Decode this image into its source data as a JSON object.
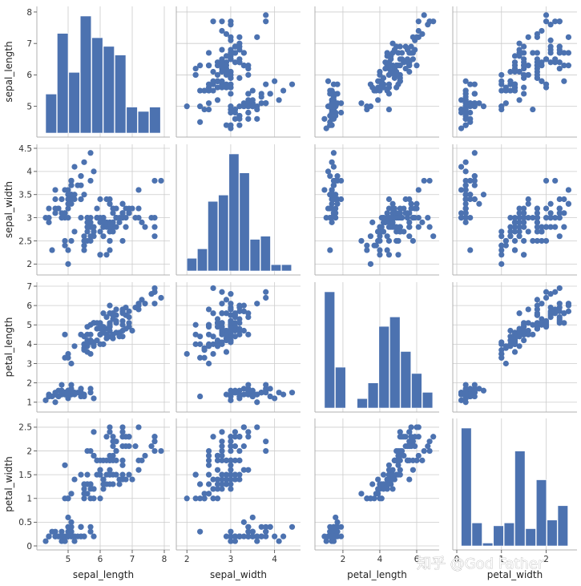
{
  "chart_data": {
    "type": "scatter",
    "title": "",
    "variables": [
      "sepal_length",
      "sepal_width",
      "petal_length",
      "petal_width"
    ],
    "axes": {
      "sepal_length": {
        "lim": [
          4.15,
          8.05
        ],
        "ticks": [
          5,
          6,
          7,
          8
        ]
      },
      "sepal_width": {
        "lim": [
          1.85,
          4.5
        ],
        "ticks": [
          2.0,
          2.5,
          3.0,
          3.5,
          4.0,
          4.5
        ],
        "x_ticks": [
          2,
          3,
          4
        ]
      },
      "petal_length": {
        "lim": [
          0.7,
          7.0
        ],
        "ticks": [
          1,
          2,
          3,
          4,
          5,
          6,
          7
        ],
        "x_ticks": [
          2,
          4,
          6
        ]
      },
      "petal_width": {
        "lim": [
          0.0,
          2.6
        ],
        "ticks": [
          0.0,
          0.5,
          1.0,
          1.5,
          2.0,
          2.5
        ],
        "x_ticks": [
          0,
          1,
          2
        ]
      }
    },
    "hist_bins": 10,
    "marker_color": "#4c72b0",
    "grid": true,
    "points": [
      [
        5.1,
        3.5,
        1.4,
        0.2
      ],
      [
        4.9,
        3.0,
        1.4,
        0.2
      ],
      [
        4.7,
        3.2,
        1.3,
        0.2
      ],
      [
        4.6,
        3.1,
        1.5,
        0.2
      ],
      [
        5.0,
        3.6,
        1.4,
        0.2
      ],
      [
        5.4,
        3.9,
        1.7,
        0.4
      ],
      [
        4.6,
        3.4,
        1.4,
        0.3
      ],
      [
        5.0,
        3.4,
        1.5,
        0.2
      ],
      [
        4.4,
        2.9,
        1.4,
        0.2
      ],
      [
        4.9,
        3.1,
        1.5,
        0.1
      ],
      [
        5.4,
        3.7,
        1.5,
        0.2
      ],
      [
        4.8,
        3.4,
        1.6,
        0.2
      ],
      [
        4.8,
        3.0,
        1.4,
        0.1
      ],
      [
        4.3,
        3.0,
        1.1,
        0.1
      ],
      [
        5.8,
        4.0,
        1.2,
        0.2
      ],
      [
        5.7,
        4.4,
        1.5,
        0.4
      ],
      [
        5.4,
        3.9,
        1.3,
        0.4
      ],
      [
        5.1,
        3.5,
        1.4,
        0.3
      ],
      [
        5.7,
        3.8,
        1.7,
        0.3
      ],
      [
        5.1,
        3.8,
        1.5,
        0.3
      ],
      [
        5.4,
        3.4,
        1.7,
        0.2
      ],
      [
        5.1,
        3.7,
        1.5,
        0.4
      ],
      [
        4.6,
        3.6,
        1.0,
        0.2
      ],
      [
        5.1,
        3.3,
        1.7,
        0.5
      ],
      [
        4.8,
        3.4,
        1.9,
        0.2
      ],
      [
        5.0,
        3.0,
        1.6,
        0.2
      ],
      [
        5.0,
        3.4,
        1.6,
        0.4
      ],
      [
        5.2,
        3.5,
        1.5,
        0.2
      ],
      [
        5.2,
        3.4,
        1.4,
        0.2
      ],
      [
        4.7,
        3.2,
        1.6,
        0.2
      ],
      [
        4.8,
        3.1,
        1.6,
        0.2
      ],
      [
        5.4,
        3.4,
        1.5,
        0.4
      ],
      [
        5.2,
        4.1,
        1.5,
        0.1
      ],
      [
        5.5,
        4.2,
        1.4,
        0.2
      ],
      [
        4.9,
        3.1,
        1.5,
        0.2
      ],
      [
        5.0,
        3.2,
        1.2,
        0.2
      ],
      [
        5.5,
        3.5,
        1.3,
        0.2
      ],
      [
        4.9,
        3.6,
        1.4,
        0.1
      ],
      [
        4.4,
        3.0,
        1.3,
        0.2
      ],
      [
        5.1,
        3.4,
        1.5,
        0.2
      ],
      [
        5.0,
        3.5,
        1.3,
        0.3
      ],
      [
        4.5,
        2.3,
        1.3,
        0.3
      ],
      [
        4.4,
        3.2,
        1.3,
        0.2
      ],
      [
        5.0,
        3.5,
        1.6,
        0.6
      ],
      [
        5.1,
        3.8,
        1.9,
        0.4
      ],
      [
        4.8,
        3.0,
        1.4,
        0.3
      ],
      [
        5.1,
        3.8,
        1.6,
        0.2
      ],
      [
        4.6,
        3.2,
        1.4,
        0.2
      ],
      [
        5.3,
        3.7,
        1.5,
        0.2
      ],
      [
        5.0,
        3.3,
        1.4,
        0.2
      ],
      [
        7.0,
        3.2,
        4.7,
        1.4
      ],
      [
        6.4,
        3.2,
        4.5,
        1.5
      ],
      [
        6.9,
        3.1,
        4.9,
        1.5
      ],
      [
        5.5,
        2.3,
        4.0,
        1.3
      ],
      [
        6.5,
        2.8,
        4.6,
        1.5
      ],
      [
        5.7,
        2.8,
        4.5,
        1.3
      ],
      [
        6.3,
        3.3,
        4.7,
        1.6
      ],
      [
        4.9,
        2.4,
        3.3,
        1.0
      ],
      [
        6.6,
        2.9,
        4.6,
        1.3
      ],
      [
        5.2,
        2.7,
        3.9,
        1.4
      ],
      [
        5.0,
        2.0,
        3.5,
        1.0
      ],
      [
        5.9,
        3.0,
        4.2,
        1.5
      ],
      [
        6.0,
        2.2,
        4.0,
        1.0
      ],
      [
        6.1,
        2.9,
        4.7,
        1.4
      ],
      [
        5.6,
        2.9,
        3.6,
        1.3
      ],
      [
        6.7,
        3.1,
        4.4,
        1.4
      ],
      [
        5.6,
        3.0,
        4.5,
        1.5
      ],
      [
        5.8,
        2.7,
        4.1,
        1.0
      ],
      [
        6.2,
        2.2,
        4.5,
        1.5
      ],
      [
        5.6,
        2.5,
        3.9,
        1.1
      ],
      [
        5.9,
        3.2,
        4.8,
        1.8
      ],
      [
        6.1,
        2.8,
        4.0,
        1.3
      ],
      [
        6.3,
        2.5,
        4.9,
        1.5
      ],
      [
        6.1,
        2.8,
        4.7,
        1.2
      ],
      [
        6.4,
        2.9,
        4.3,
        1.3
      ],
      [
        6.6,
        3.0,
        4.4,
        1.4
      ],
      [
        6.8,
        2.8,
        4.8,
        1.4
      ],
      [
        6.7,
        3.0,
        5.0,
        1.7
      ],
      [
        6.0,
        2.9,
        4.5,
        1.5
      ],
      [
        5.7,
        2.6,
        3.5,
        1.0
      ],
      [
        5.5,
        2.4,
        3.8,
        1.1
      ],
      [
        5.5,
        2.4,
        3.7,
        1.0
      ],
      [
        5.8,
        2.7,
        3.9,
        1.2
      ],
      [
        6.0,
        2.7,
        5.1,
        1.6
      ],
      [
        5.4,
        3.0,
        4.5,
        1.5
      ],
      [
        6.0,
        3.4,
        4.5,
        1.6
      ],
      [
        6.7,
        3.1,
        4.7,
        1.5
      ],
      [
        6.3,
        2.3,
        4.4,
        1.3
      ],
      [
        5.6,
        3.0,
        4.1,
        1.3
      ],
      [
        5.5,
        2.5,
        4.0,
        1.3
      ],
      [
        5.5,
        2.6,
        4.4,
        1.2
      ],
      [
        6.1,
        3.0,
        4.6,
        1.4
      ],
      [
        5.8,
        2.6,
        4.0,
        1.2
      ],
      [
        5.0,
        2.3,
        3.3,
        1.0
      ],
      [
        5.6,
        2.7,
        4.2,
        1.3
      ],
      [
        5.7,
        3.0,
        4.2,
        1.2
      ],
      [
        5.7,
        2.9,
        4.2,
        1.3
      ],
      [
        6.2,
        2.9,
        4.3,
        1.3
      ],
      [
        5.1,
        2.5,
        3.0,
        1.1
      ],
      [
        5.7,
        2.8,
        4.1,
        1.3
      ],
      [
        6.3,
        3.3,
        6.0,
        2.5
      ],
      [
        5.8,
        2.7,
        5.1,
        1.9
      ],
      [
        7.1,
        3.0,
        5.9,
        2.1
      ],
      [
        6.3,
        2.9,
        5.6,
        1.8
      ],
      [
        6.5,
        3.0,
        5.8,
        2.2
      ],
      [
        7.6,
        3.0,
        6.6,
        2.1
      ],
      [
        4.9,
        2.5,
        4.5,
        1.7
      ],
      [
        7.3,
        2.9,
        6.3,
        1.8
      ],
      [
        6.7,
        2.5,
        5.8,
        1.8
      ],
      [
        7.2,
        3.6,
        6.1,
        2.5
      ],
      [
        6.5,
        3.2,
        5.1,
        2.0
      ],
      [
        6.4,
        2.7,
        5.3,
        1.9
      ],
      [
        6.8,
        3.0,
        5.5,
        2.1
      ],
      [
        5.7,
        2.5,
        5.0,
        2.0
      ],
      [
        5.8,
        2.8,
        5.1,
        2.4
      ],
      [
        6.4,
        3.2,
        5.3,
        2.3
      ],
      [
        6.5,
        3.0,
        5.5,
        1.8
      ],
      [
        7.7,
        3.8,
        6.7,
        2.2
      ],
      [
        7.7,
        2.6,
        6.9,
        2.3
      ],
      [
        6.0,
        2.2,
        5.0,
        1.5
      ],
      [
        6.9,
        3.2,
        5.7,
        2.3
      ],
      [
        5.6,
        2.8,
        4.9,
        2.0
      ],
      [
        7.7,
        2.8,
        6.7,
        2.0
      ],
      [
        6.3,
        2.7,
        4.9,
        1.8
      ],
      [
        6.7,
        3.3,
        5.7,
        2.1
      ],
      [
        7.2,
        3.2,
        6.0,
        1.8
      ],
      [
        6.2,
        2.8,
        4.8,
        1.8
      ],
      [
        6.1,
        3.0,
        4.9,
        1.8
      ],
      [
        6.4,
        2.8,
        5.6,
        2.1
      ],
      [
        7.2,
        3.0,
        5.8,
        1.6
      ],
      [
        7.4,
        2.8,
        6.1,
        1.9
      ],
      [
        7.9,
        3.8,
        6.4,
        2.0
      ],
      [
        6.4,
        2.8,
        5.6,
        2.2
      ],
      [
        6.3,
        2.8,
        5.1,
        1.5
      ],
      [
        6.1,
        2.6,
        5.6,
        1.4
      ],
      [
        7.7,
        3.0,
        6.1,
        2.3
      ],
      [
        6.3,
        3.4,
        5.6,
        2.4
      ],
      [
        6.4,
        3.1,
        5.5,
        1.8
      ],
      [
        6.0,
        3.0,
        4.8,
        1.8
      ],
      [
        6.9,
        3.1,
        5.4,
        2.1
      ],
      [
        6.7,
        3.1,
        5.6,
        2.4
      ],
      [
        6.9,
        3.1,
        5.1,
        2.3
      ],
      [
        5.8,
        2.7,
        5.1,
        1.9
      ],
      [
        6.8,
        3.2,
        5.9,
        2.3
      ],
      [
        6.7,
        3.3,
        5.7,
        2.5
      ],
      [
        6.7,
        3.0,
        5.2,
        2.3
      ],
      [
        6.3,
        2.5,
        5.0,
        1.9
      ],
      [
        6.5,
        3.0,
        5.2,
        2.0
      ],
      [
        6.2,
        3.4,
        5.4,
        2.3
      ],
      [
        5.9,
        3.0,
        5.1,
        1.8
      ]
    ]
  },
  "watermark": "知乎 @God Father"
}
